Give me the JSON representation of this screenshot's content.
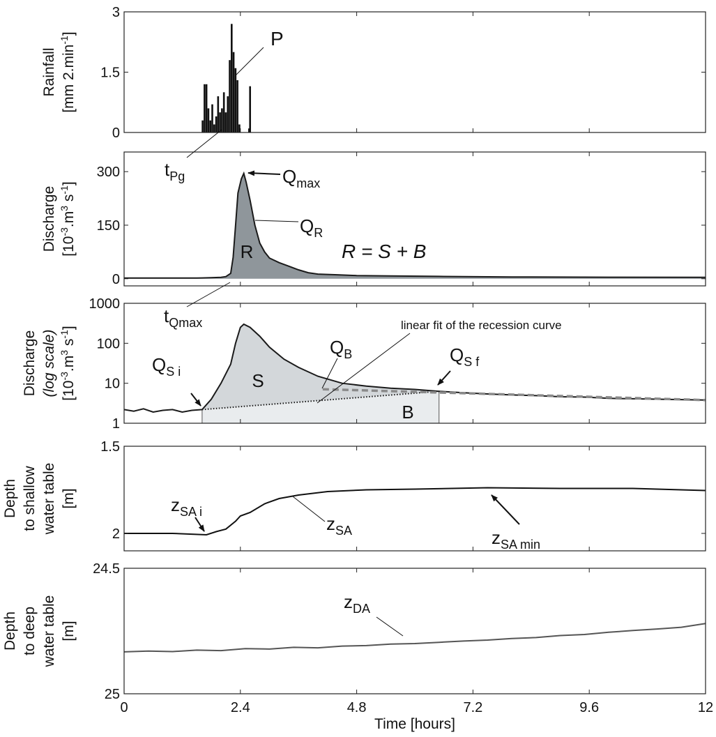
{
  "chart_data": [
    {
      "type": "bar",
      "color": "#111111",
      "ylabel": [
        [
          {
            "text": "Rainfall"
          }
        ],
        [
          {
            "text": "[mm 2.min"
          },
          {
            "text": "-1",
            "sup": true
          },
          {
            "text": "]"
          }
        ]
      ],
      "xlim": [
        0,
        12
      ],
      "xticks": [
        0,
        2.4,
        4.8,
        7.2,
        9.6,
        12
      ],
      "ylim": [
        0,
        3
      ],
      "yticks": [
        0,
        1.5,
        3
      ],
      "x": [
        1.62,
        1.66,
        1.7,
        1.74,
        1.78,
        1.82,
        1.86,
        1.9,
        1.94,
        1.98,
        2.02,
        2.06,
        2.1,
        2.14,
        2.18,
        2.22,
        2.26,
        2.3,
        2.34,
        2.38,
        2.58,
        2.6
      ],
      "values": [
        0.3,
        1.2,
        1.2,
        0.6,
        0.3,
        0.7,
        0.2,
        0.4,
        0.9,
        0.5,
        0.6,
        1.0,
        0.5,
        0.9,
        1.8,
        2.7,
        2.0,
        1.6,
        1.3,
        0.2,
        0.1,
        1.15
      ],
      "annotations": [
        {
          "text": "P"
        }
      ]
    },
    {
      "type": "area",
      "color": "#1a1a1a",
      "fill_color": "#8f969b",
      "ylabel": [
        [
          {
            "text": "Discharge"
          }
        ],
        [
          {
            "text": "[10"
          },
          {
            "text": "-3",
            "sup": true
          },
          {
            "text": ".m"
          },
          {
            "text": "3",
            "sup": true
          },
          {
            "text": " s"
          },
          {
            "text": "-1",
            "sup": true
          },
          {
            "text": "]"
          }
        ]
      ],
      "xlim": [
        0,
        12
      ],
      "xticks": [
        0,
        2.4,
        4.8,
        7.2,
        9.6,
        12
      ],
      "ylim": [
        -20,
        355
      ],
      "yticks": [
        0,
        150,
        300
      ],
      "x": [
        0,
        0.5,
        1,
        1.5,
        1.61,
        1.8,
        2.0,
        2.1,
        2.2,
        2.25,
        2.3,
        2.35,
        2.42,
        2.47,
        2.52,
        2.6,
        2.7,
        2.8,
        2.9,
        3.0,
        3.2,
        3.4,
        3.6,
        3.8,
        4.0,
        4.4,
        4.8,
        5.5,
        6.5,
        8,
        10,
        12
      ],
      "values": [
        2,
        2,
        2,
        2,
        2.2,
        3,
        4,
        6,
        15,
        60,
        150,
        240,
        280,
        295,
        270,
        220,
        150,
        100,
        75,
        58,
        45,
        35,
        25,
        17,
        13,
        11,
        9,
        8,
        6.5,
        5,
        4.2,
        3.8
      ],
      "annotations": [
        {
          "text": "t",
          "sub": "Pg"
        },
        {
          "text": "Q",
          "sub": "max"
        },
        {
          "text": "Q",
          "sub": "R"
        },
        {
          "text": "R"
        },
        {
          "text": "R = S + B"
        }
      ]
    },
    {
      "type": "log-area",
      "log_scale": true,
      "color": "#1a1a1a",
      "s_color": "#d3d7da",
      "b_color": "#e9ecee",
      "fit_color": "#8a8a8a",
      "ylabel": [
        [
          {
            "text": "Discharge"
          }
        ],
        [
          {
            "text": "(log scale)",
            "italic": true
          }
        ],
        [
          {
            "text": "[10"
          },
          {
            "text": "-3",
            "sup": true
          },
          {
            "text": ".m"
          },
          {
            "text": "3",
            "sup": true
          },
          {
            "text": " s"
          },
          {
            "text": "-1",
            "sup": true
          },
          {
            "text": "]"
          }
        ]
      ],
      "xlim": [
        0,
        12
      ],
      "xticks": [
        0,
        2.4,
        4.8,
        7.2,
        9.6,
        12
      ],
      "ylim": [
        1,
        1000
      ],
      "yticks": [
        1,
        10,
        100,
        1000
      ],
      "x": [
        0,
        0.2,
        0.4,
        0.6,
        0.8,
        1.0,
        1.2,
        1.4,
        1.61,
        1.8,
        2.0,
        2.2,
        2.3,
        2.4,
        2.47,
        2.6,
        2.8,
        3.0,
        3.3,
        3.6,
        4.0,
        4.5,
        5.0,
        5.5,
        6.0,
        6.5,
        7,
        7.5,
        8,
        8.5,
        9,
        9.5,
        10,
        10.5,
        11,
        11.5,
        12
      ],
      "values": [
        2.2,
        2.0,
        2.3,
        1.9,
        2.1,
        2.2,
        1.9,
        2.1,
        2.2,
        4,
        10,
        30,
        100,
        250,
        300,
        250,
        150,
        80,
        40,
        25,
        15,
        10,
        8.5,
        7.5,
        7,
        6.3,
        5.8,
        5.4,
        5.1,
        4.9,
        4.6,
        4.5,
        4.2,
        4.1,
        4.0,
        3.9,
        3.8
      ],
      "separation": {
        "x": [
          1.61,
          6.5
        ],
        "values": [
          2.2,
          6.3
        ]
      },
      "recession_fit": {
        "x": [
          4.1,
          12
        ],
        "values": [
          7.1,
          3.8
        ]
      },
      "annotations": [
        {
          "text": "t",
          "sub": "Qmax"
        },
        {
          "text": "Q",
          "sub": "S i"
        },
        {
          "text": "S"
        },
        {
          "text": "Q",
          "sub": "B"
        },
        {
          "text": "linear fit of the recession curve"
        },
        {
          "text": "Q",
          "sub": "S f"
        },
        {
          "text": "B"
        }
      ]
    },
    {
      "type": "line",
      "color": "#111111",
      "ylabel": [
        [
          {
            "text": "Depth"
          }
        ],
        [
          {
            "text": "to shallow"
          }
        ],
        [
          {
            "text": "water table"
          }
        ],
        [
          {
            "text": "[m]"
          }
        ]
      ],
      "xlim": [
        0,
        12
      ],
      "xticks": [
        0,
        2.4,
        4.8,
        7.2,
        9.6,
        12
      ],
      "ylim": [
        2.1,
        1.5
      ],
      "yticks": [
        1.5,
        2
      ],
      "x": [
        0,
        1,
        1.7,
        1.9,
        2.1,
        2.3,
        2.4,
        2.6,
        2.9,
        3.2,
        3.6,
        4.2,
        5,
        6,
        7.5,
        9,
        10.5,
        12
      ],
      "values": [
        2.0,
        2.0,
        2.008,
        1.99,
        1.975,
        1.93,
        1.9,
        1.88,
        1.83,
        1.8,
        1.78,
        1.76,
        1.75,
        1.746,
        1.738,
        1.742,
        1.742,
        1.754
      ],
      "annotations": [
        {
          "text": "z",
          "sub": "SA i"
        },
        {
          "text": "z",
          "sub": "SA"
        },
        {
          "text": "z",
          "sub": "SA min"
        }
      ]
    },
    {
      "type": "line",
      "color": "#555555",
      "ylabel": [
        [
          {
            "text": "Depth"
          }
        ],
        [
          {
            "text": "to deep"
          }
        ],
        [
          {
            "text": "water table"
          }
        ],
        [
          {
            "text": "[m]"
          }
        ]
      ],
      "xlabel": "Time [hours]",
      "xlim": [
        0,
        12
      ],
      "xticks": [
        0,
        2.4,
        4.8,
        7.2,
        9.6,
        12
      ],
      "ylim": [
        25,
        24.5
      ],
      "yticks": [
        24.5,
        25
      ],
      "x": [
        0,
        0.5,
        1,
        1.5,
        2,
        2.5,
        3,
        3.5,
        4,
        4.5,
        5,
        5.5,
        6,
        6.5,
        7,
        7.5,
        8,
        8.5,
        9,
        9.5,
        10,
        10.5,
        11,
        11.5,
        12
      ],
      "values": [
        24.833,
        24.83,
        24.832,
        24.826,
        24.828,
        24.82,
        24.822,
        24.815,
        24.817,
        24.81,
        24.808,
        24.802,
        24.8,
        24.795,
        24.79,
        24.786,
        24.78,
        24.776,
        24.768,
        24.764,
        24.755,
        24.748,
        24.742,
        24.735,
        24.72
      ],
      "annotations": [
        {
          "text": "z",
          "sub": "DA"
        }
      ]
    }
  ]
}
